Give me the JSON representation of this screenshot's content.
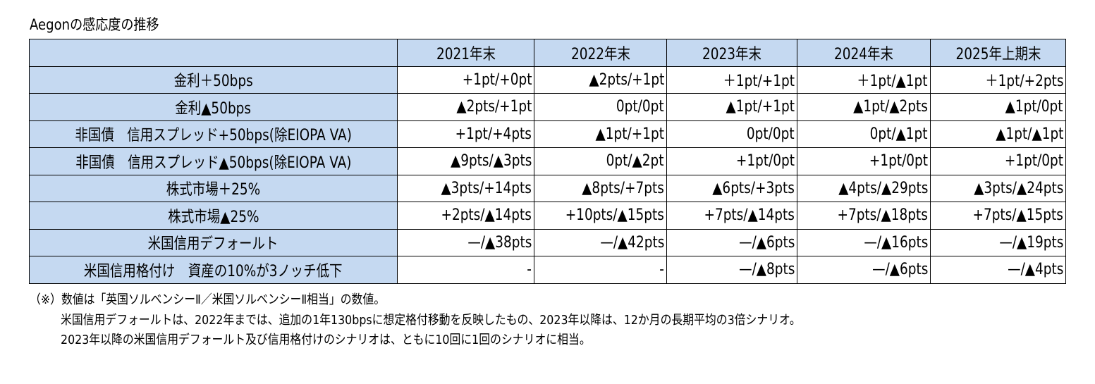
{
  "title": "Aegonの感応度の推移",
  "table": {
    "corner": "",
    "columns": [
      "2021年末",
      "2022年末",
      "2023年末",
      "2024年末",
      "2025年上期末"
    ],
    "rows": [
      {
        "label": "金利＋50bps",
        "values": [
          "+1pt/+0pt",
          "▲2pts/+1pt",
          "＋1pt/+1pt",
          "＋1pt/▲1pt",
          "＋1pt/+2pts"
        ]
      },
      {
        "label": "金利▲50bps",
        "values": [
          "▲2pts/+1pt",
          "0pt/0pt",
          "▲1pt/+1pt",
          "▲1pt/▲2pts",
          "▲1pt/0pt"
        ]
      },
      {
        "label": "非国債　信用スプレッド+50bps(除EIOPA VA)",
        "values": [
          "+1pt/+4pts",
          "▲1pt/+1pt",
          "0pt/0pt",
          "0pt/▲1pt",
          "▲1pt/▲1pt"
        ]
      },
      {
        "label": "非国債　信用スプレッド▲50bps(除EIOPA VA)",
        "values": [
          "▲9pts/▲3pts",
          "0pt/▲2pt",
          "+1pt/0pt",
          "+1pt/0pt",
          "+1pt/0pt"
        ]
      },
      {
        "label": "株式市場＋25%",
        "values": [
          "▲3pts/+14pts",
          "▲8pts/+7pts",
          "▲6pts/+3pts",
          "▲4pts/▲29pts",
          "▲3pts/▲24pts"
        ]
      },
      {
        "label": "株式市場▲25%",
        "values": [
          "+2pts/▲14pts",
          "+10pts/▲15pts",
          "+7pts/▲14pts",
          "+7pts/▲18pts",
          "+7pts/▲15pts"
        ]
      },
      {
        "label": "米国信用デフォールト",
        "values": [
          "—/▲38pts",
          "—/▲42pts",
          "—/▲6pts",
          "—/▲16pts",
          "—/▲19pts"
        ]
      },
      {
        "label": "米国信用格付け　資産の10%が3ノッチ低下",
        "values": [
          "-",
          "-",
          "—/▲8pts",
          "—/▲6pts",
          "—/▲4pts"
        ]
      }
    ]
  },
  "notes": [
    "（※）数値は「英国ソルベンシーⅡ／米国ソルベンシーⅡ相当」の数値。",
    "米国信用デフォールトは、2022年までは、追加の1年130bpsに想定格付移動を反映したもの、2023年以降は、12か月の長期平均の3倍シナリオ。",
    "2023年以降の米国信用デフォールト及び信用格付けのシナリオは、ともに10回に1回のシナリオに相当。"
  ]
}
